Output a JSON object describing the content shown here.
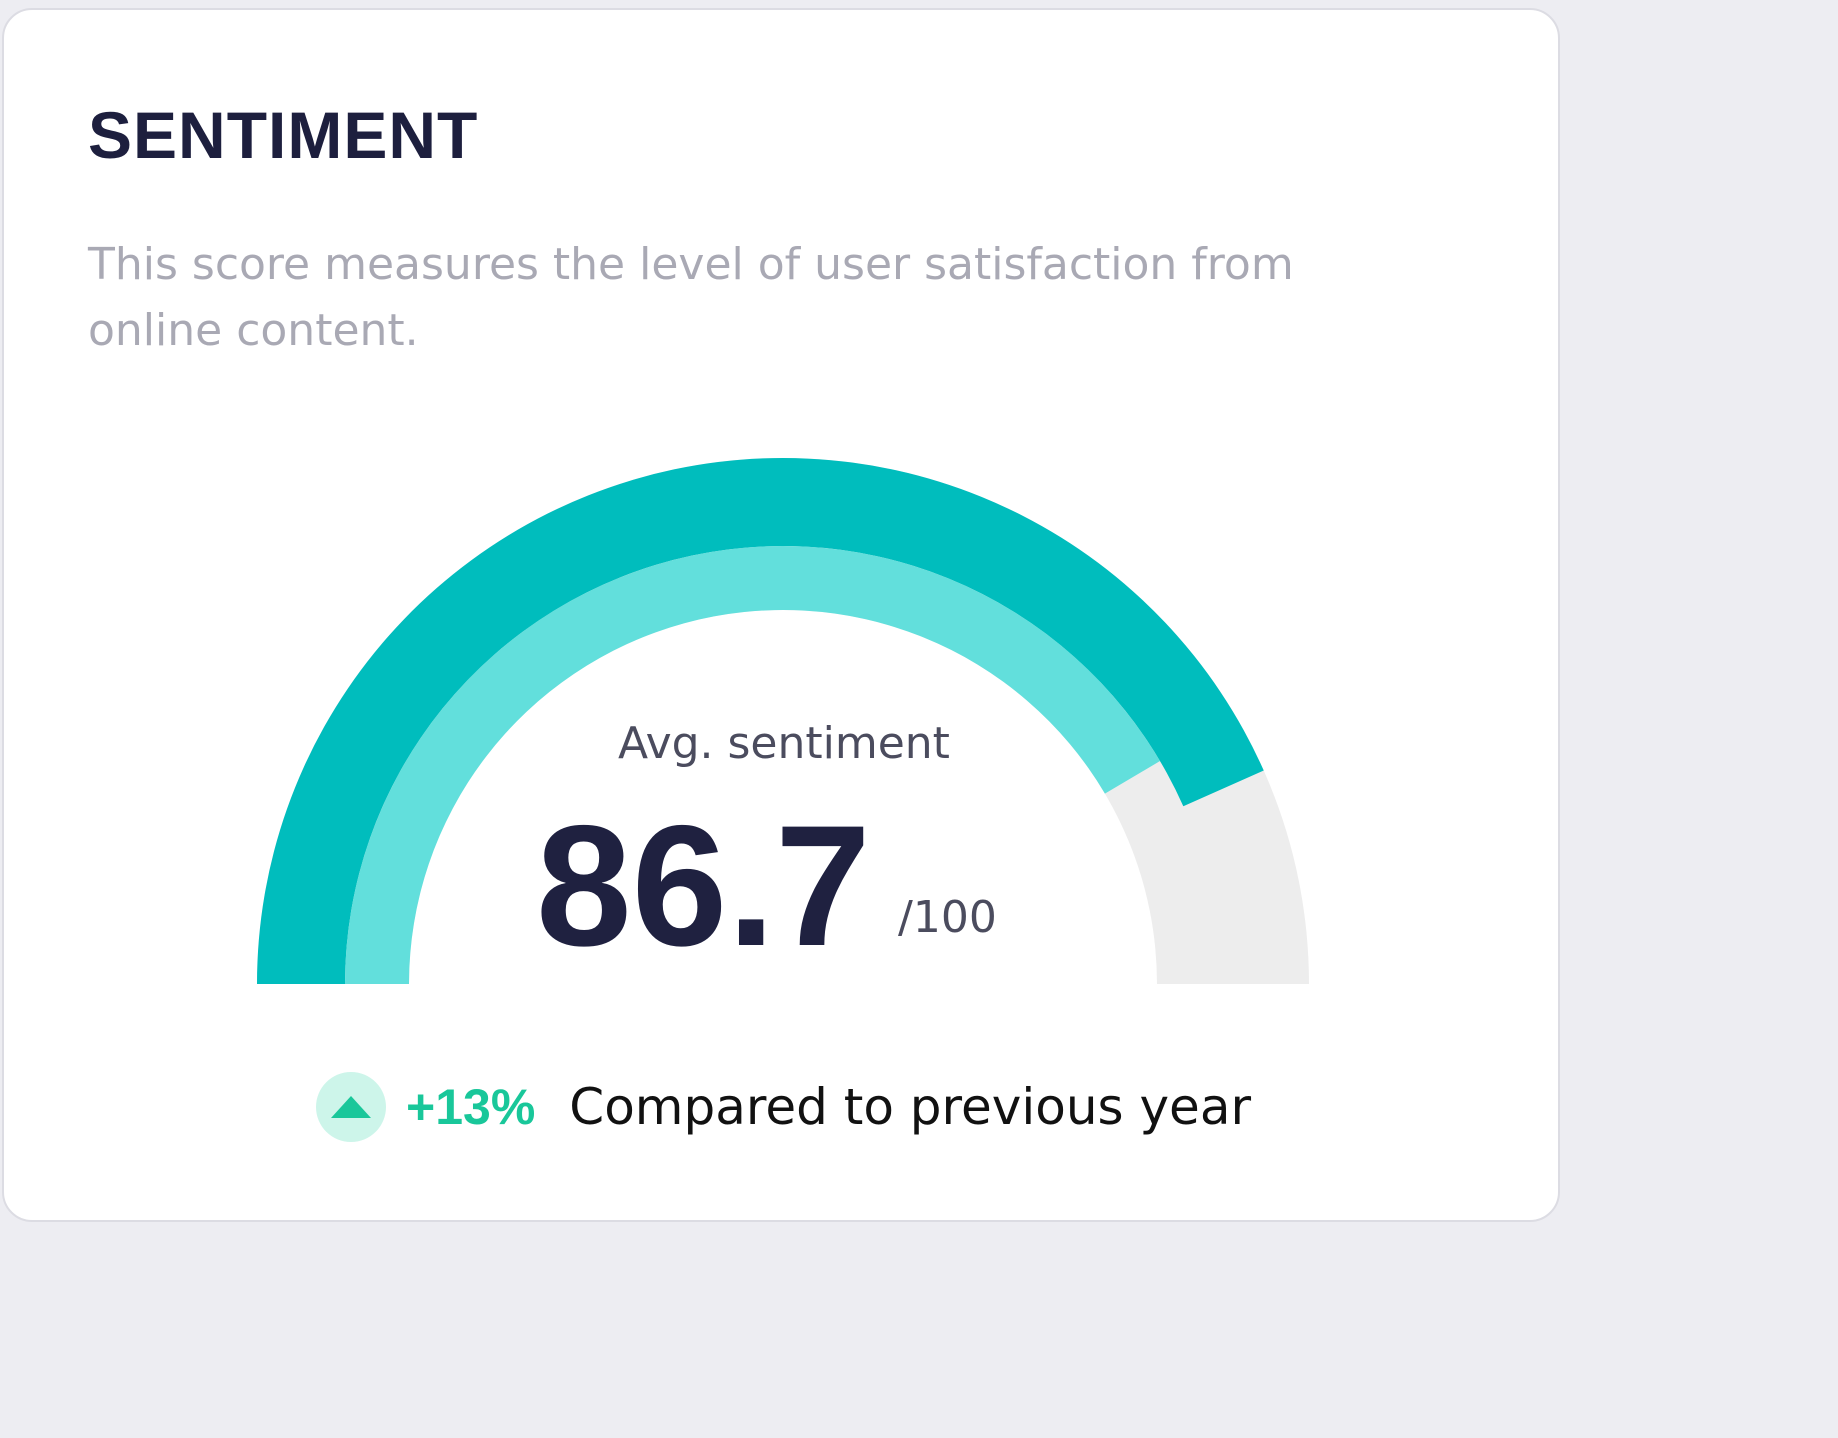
{
  "card": {
    "title": "SENTIMENT",
    "description": "This score measures the level of user satisfaction from online content."
  },
  "gauge": {
    "label": "Avg. sentiment",
    "value": "86.7",
    "max_label": "/100",
    "outer_fraction": 0.867,
    "inner_fraction": 0.83,
    "colors": {
      "outer": "#00bdbd",
      "inner": "#62dfdc",
      "track": "#ededed"
    }
  },
  "trend": {
    "icon": "arrow-up-icon",
    "value": "+13%",
    "text": "Compared to previous year",
    "color": "#19c79a"
  }
}
